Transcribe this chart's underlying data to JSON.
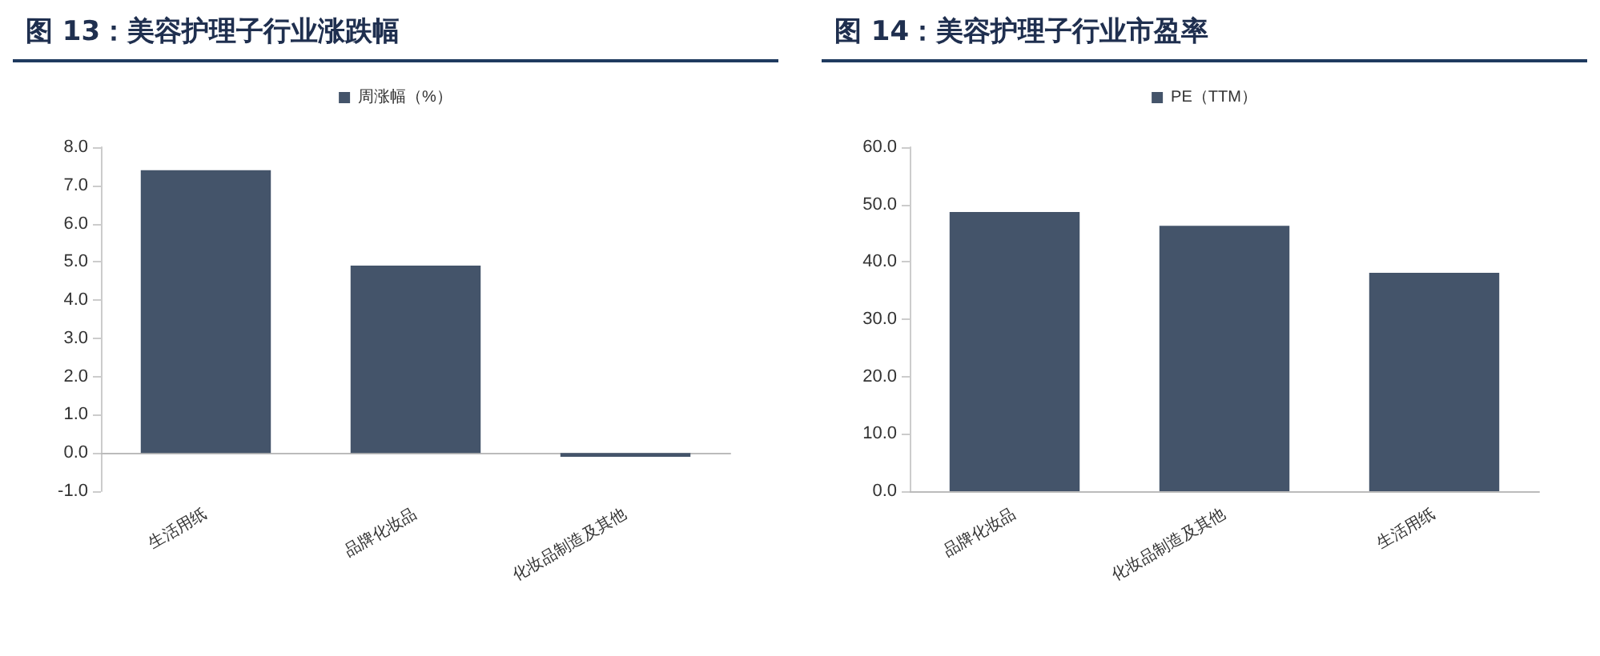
{
  "chart_data": [
    {
      "type": "bar",
      "title": "图 13：美容护理子行业涨跌幅",
      "categories": [
        "生活用纸",
        "品牌化妆品",
        "化妆品制造及其他"
      ],
      "series": [
        {
          "name": "周涨幅（%）",
          "color": "#44546a",
          "values": [
            7.4,
            4.9,
            -0.1
          ]
        }
      ],
      "ylim": [
        -1,
        8
      ],
      "yticks": [
        {
          "value": -1,
          "label": "-1.0"
        },
        {
          "value": 0,
          "label": "0.0"
        },
        {
          "value": 1,
          "label": "1.0"
        },
        {
          "value": 2,
          "label": "2.0"
        },
        {
          "value": 3,
          "label": "3.0"
        },
        {
          "value": 4,
          "label": "4.0"
        },
        {
          "value": 5,
          "label": "5.0"
        },
        {
          "value": 6,
          "label": "6.0"
        },
        {
          "value": 7,
          "label": "7.0"
        },
        {
          "value": 8,
          "label": "8.0"
        }
      ],
      "legend": "top"
    },
    {
      "type": "bar",
      "title": "图 14：美容护理子行业市盈率",
      "categories": [
        "品牌化妆品",
        "化妆品制造及其他",
        "生活用纸"
      ],
      "series": [
        {
          "name": "PE（TTM）",
          "color": "#44546a",
          "values": [
            48.7,
            46.3,
            38.1
          ]
        }
      ],
      "ylim": [
        0,
        60
      ],
      "yticks": [
        {
          "value": 0,
          "label": "0.0"
        },
        {
          "value": 10,
          "label": "10.0"
        },
        {
          "value": 20,
          "label": "20.0"
        },
        {
          "value": 30,
          "label": "30.0"
        },
        {
          "value": 40,
          "label": "40.0"
        },
        {
          "value": 50,
          "label": "50.0"
        },
        {
          "value": 60,
          "label": "60.0"
        }
      ],
      "legend": "top"
    }
  ]
}
